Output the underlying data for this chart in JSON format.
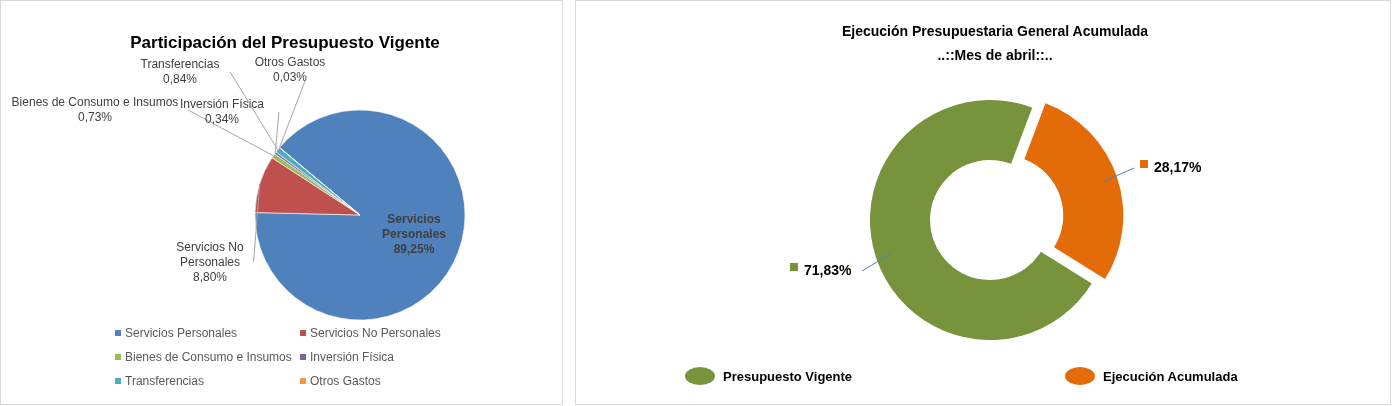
{
  "chart_data": [
    {
      "type": "pie",
      "title": "Participación del Presupuesto Vigente",
      "categories": [
        "Servicios Personales",
        "Servicios No Personales",
        "Bienes de Consumo e Insumos",
        "Inversión Física",
        "Transferencias",
        "Otros Gastos"
      ],
      "values": [
        89.25,
        8.8,
        0.73,
        0.34,
        0.84,
        0.03
      ],
      "colors": [
        "#4f81bd",
        "#c0504d",
        "#9bbb59",
        "#8064a2",
        "#4bacc6",
        "#f79646"
      ],
      "value_labels": [
        "89,25%",
        "8,80%",
        "0,73%",
        "0,34%",
        "0,84%",
        "0,03%"
      ],
      "legend": "bottom"
    },
    {
      "type": "donut",
      "title": "Ejecución Presupuestaria General Acumulada",
      "subtitle": "..::Mes de abril::..",
      "categories": [
        "Presupuesto Vigente",
        "Ejecución Acumulada"
      ],
      "values": [
        71.83,
        28.17
      ],
      "colors": [
        "#77933c",
        "#e36c09"
      ],
      "value_labels": [
        "71,83%",
        "28,17%"
      ],
      "legend": "bottom"
    }
  ]
}
